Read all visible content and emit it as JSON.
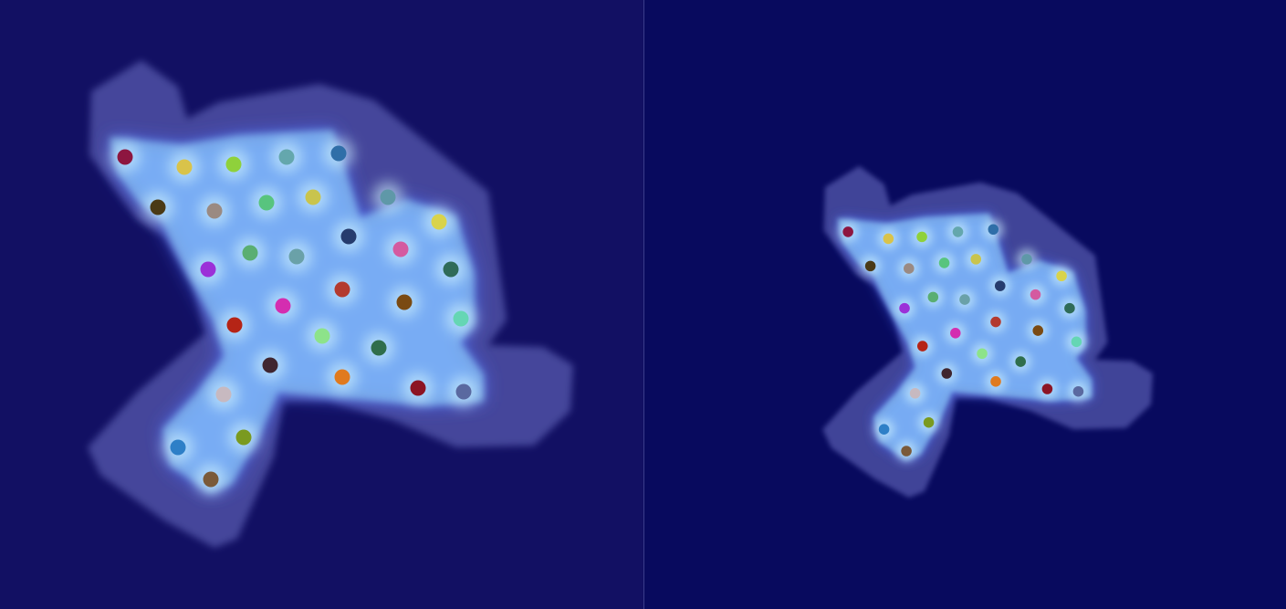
{
  "colors": {
    "left_background": "#121063",
    "right_background": "#080a5e",
    "outer_halo": "#6f73c9",
    "inner_glow": "#9fe8ff",
    "core": "#d8fbff"
  },
  "panels": [
    {
      "name": "left-heatmap",
      "keypoints": [
        "#8d1640",
        "#d9c34a",
        "#8fd13b",
        "#64a7ad",
        "#2f6ea8",
        "#4a3a16",
        "#9a8a82",
        "#58c47e",
        "#c9c44d",
        "#5f98a8",
        "#d9d34b",
        "#263c6e",
        "#d45aa0",
        "#2f6b58",
        "#5aae72",
        "#6aa1a8",
        "#9b30d8",
        "#b33a2f",
        "#d42db0",
        "#7a4a12",
        "#65d6b4",
        "#b52416",
        "#8de38a",
        "#2f6e4c",
        "#3f2630",
        "#e07a1e",
        "#c7b9c0",
        "#8c1424",
        "#5a69a0",
        "#2e7fc7",
        "#7a9a20",
        "#7a5a3a"
      ]
    },
    {
      "name": "right-heatmap",
      "keypoints": [
        "#8d1640",
        "#d9c34a",
        "#8fd13b",
        "#64a7ad",
        "#2f6ea8",
        "#4a3a16",
        "#9a8a82",
        "#58c47e",
        "#c9c44d",
        "#5f98a8",
        "#d9d34b",
        "#263c6e",
        "#d45aa0",
        "#2f6b58",
        "#5aae72",
        "#6aa1a8",
        "#9b30d8",
        "#b33a2f",
        "#d42db0",
        "#7a4a12",
        "#65d6b4",
        "#b52416",
        "#8de38a",
        "#2f6e4c",
        "#3f2630",
        "#e07a1e",
        "#c7b9c0",
        "#8c1424",
        "#5a69a0",
        "#2e7fc7",
        "#7a9a20",
        "#7a5a3a"
      ]
    }
  ]
}
